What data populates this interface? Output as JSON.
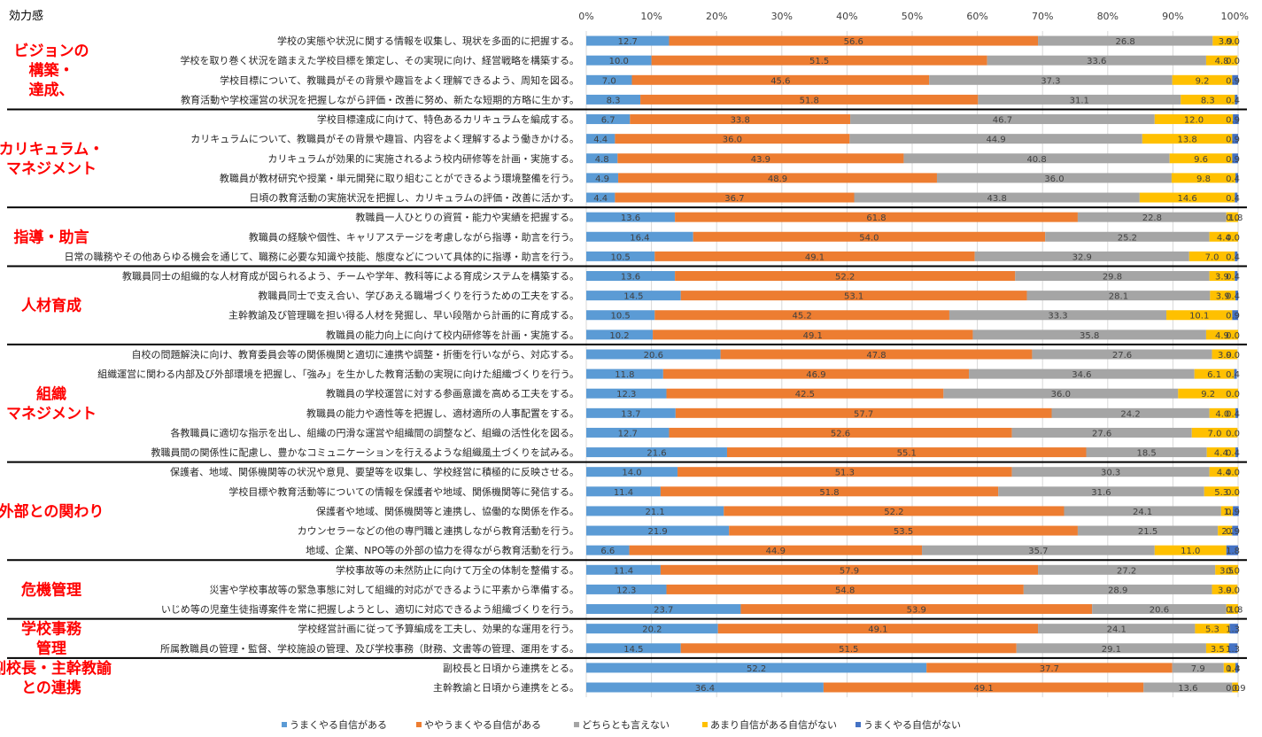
{
  "chart_data": {
    "type": "bar",
    "orientation": "horizontal",
    "stacked": "percent",
    "title": "効力感",
    "xlim": [
      0,
      100
    ],
    "x_ticks": [
      "0%",
      "10%",
      "20%",
      "30%",
      "40%",
      "50%",
      "60%",
      "70%",
      "80%",
      "90%",
      "100%"
    ],
    "legend_position": "bottom",
    "series": [
      {
        "name": "うまくやる自信がある",
        "color": "#5b9bd5"
      },
      {
        "name": "ややうまくやる自信がある",
        "color": "#ed7d31"
      },
      {
        "name": "どちらとも言えない",
        "color": "#a5a5a5"
      },
      {
        "name": "あまり自信がある自信がない",
        "color": "#ffc000"
      },
      {
        "name": "うまくやる自信がない",
        "color": "#4472c4"
      }
    ],
    "groups": [
      {
        "label": [
          "ビジョンの",
          "構築・",
          "達成、"
        ],
        "rows": [
          {
            "label": "学校の実態や状況に関する情報を収集し、現状を多面的に把握する。",
            "values": [
              12.7,
              56.6,
              26.8,
              3.9,
              0.0
            ]
          },
          {
            "label": "学校を取り巻く状況を踏まえた学校目標を策定し、その実現に向け、経営戦略を構築する。",
            "values": [
              10.0,
              51.5,
              33.6,
              4.8,
              0.0
            ]
          },
          {
            "label": "学校目標について、教職員がその背景や趣旨をよく理解できるよう、周知を図る。",
            "values": [
              7.0,
              45.6,
              37.3,
              9.2,
              0.9
            ]
          },
          {
            "label": "教育活動や学校運営の状況を把握しながら評価・改善に努め、新たな短期的方略に生かす。",
            "values": [
              8.3,
              51.8,
              31.1,
              8.3,
              0.4
            ]
          }
        ]
      },
      {
        "label": [
          "カリキュラム・",
          "マネジメント"
        ],
        "rows": [
          {
            "label": "学校目標達成に向けて、特色あるカリキュラムを編成する。",
            "values": [
              6.7,
              33.8,
              46.7,
              12.0,
              0.9
            ]
          },
          {
            "label": "カリキュラムについて、教職員がその背景や趣旨、内容をよく理解するよう働きかける。",
            "values": [
              4.4,
              36.0,
              44.9,
              13.8,
              0.9
            ]
          },
          {
            "label": "カリキュラムが効果的に実施されるよう校内研修等を計画・実施する。",
            "values": [
              4.8,
              43.9,
              40.8,
              9.6,
              0.9
            ]
          },
          {
            "label": "教職員が教材研究や授業・単元開発に取り組むことができるよう環境整備を行う。",
            "values": [
              4.9,
              48.9,
              36.0,
              9.8,
              0.4
            ]
          },
          {
            "label": "日頃の教育活動の実施状況を把握し、カリキュラムの評価・改善に活かす。",
            "values": [
              4.4,
              36.7,
              43.8,
              14.6,
              0.4
            ]
          }
        ]
      },
      {
        "label": [
          "指導・助言"
        ],
        "rows": [
          {
            "label": "教職員一人ひとりの資質・能力や実績を把握する。",
            "values": [
              13.6,
              61.8,
              22.8,
              1.8,
              0.0
            ]
          },
          {
            "label": "教職員の経験や個性、キャリアステージを考慮しながら指導・助言を行う。",
            "values": [
              16.4,
              54.0,
              25.2,
              4.4,
              0.0
            ]
          },
          {
            "label": "日常の職務やその他あらゆる機会を通じて、職務に必要な知識や技能、態度などについて具体的に指導・助言を行う。",
            "values": [
              10.5,
              49.1,
              32.9,
              7.0,
              0.4
            ]
          }
        ]
      },
      {
        "label": [
          "人材育成"
        ],
        "rows": [
          {
            "label": "教職員同士の組織的な人材育成が図られるよう、チームや学年、教科等による育成システムを構築する。",
            "values": [
              13.6,
              52.2,
              29.8,
              3.9,
              0.4
            ]
          },
          {
            "label": "教職員同士で支え合い、学びあえる職場づくりを行うための工夫をする。",
            "values": [
              14.5,
              53.1,
              28.1,
              3.9,
              0.4
            ]
          },
          {
            "label": "主幹教諭及び管理職を担い得る人材を発掘し、早い段階から計画的に育成する。",
            "values": [
              10.5,
              45.2,
              33.3,
              10.1,
              0.9
            ]
          },
          {
            "label": "教職員の能力向上に向けて校内研修等を計画・実施する。",
            "values": [
              10.2,
              49.1,
              35.8,
              4.9,
              0.0
            ]
          }
        ]
      },
      {
        "label": [
          "組織",
          "マネジメント"
        ],
        "rows": [
          {
            "label": "自校の問題解決に向け、教育委員会等の関係機関と適切に連携や調整・折衝を行いながら、対応する。",
            "values": [
              20.6,
              47.8,
              27.6,
              3.9,
              0.0
            ]
          },
          {
            "label": "組織運営に関わる内部及び外部環境を把握し、「強み」を生かした教育活動の実現に向けた組織づくりを行う。",
            "values": [
              11.8,
              46.9,
              34.6,
              6.1,
              0.4
            ]
          },
          {
            "label": "教職員の学校運営に対する参画意識を高める工夫をする。",
            "values": [
              12.3,
              42.5,
              36.0,
              9.2,
              0.0
            ]
          },
          {
            "label": "教職員の能力や適性等を把握し、適材適所の人事配置をする。",
            "values": [
              13.7,
              57.7,
              24.2,
              4.0,
              0.4
            ]
          },
          {
            "label": "各教職員に適切な指示を出し、組織の円滑な運営や組織間の調整など、組織の活性化を図る。",
            "values": [
              12.7,
              52.6,
              27.6,
              7.0,
              0.0
            ]
          },
          {
            "label": "教職員間の関係性に配慮し、豊かなコミュニケーションを行えるような組織風土づくりを試みる。",
            "values": [
              21.6,
              55.1,
              18.5,
              4.4,
              0.4
            ]
          }
        ]
      },
      {
        "label": [
          "外部との関わり"
        ],
        "rows": [
          {
            "label": "保護者、地域、関係機関等の状況や意見、要望等を収集し、学校経営に積極的に反映させる。",
            "values": [
              14.0,
              51.3,
              30.3,
              4.4,
              0.0
            ]
          },
          {
            "label": "学校目標や教育活動等についての情報を保護者や地域、関係機関等に発信する。",
            "values": [
              11.4,
              51.8,
              31.6,
              5.3,
              0.0
            ]
          },
          {
            "label": "保護者や地域、関係機関等と連携し、協働的な関係を作る。",
            "values": [
              21.1,
              52.2,
              24.1,
              1.8,
              0.9
            ]
          },
          {
            "label": "カウンセラーなどの他の専門職と連携しながら教育活動を行う。",
            "values": [
              21.9,
              53.5,
              21.5,
              2.2,
              0.9
            ]
          },
          {
            "label": "地域、企業、NPO等の外部の協力を得ながら教育活動を行う。",
            "values": [
              6.6,
              44.9,
              35.7,
              11.0,
              1.8
            ]
          }
        ]
      },
      {
        "label": [
          "危機管理"
        ],
        "rows": [
          {
            "label": "学校事故等の未然防止に向けて万全の体制を整備する。",
            "values": [
              11.4,
              57.9,
              27.2,
              3.5,
              0.0
            ]
          },
          {
            "label": "災害や学校事故等の緊急事態に対して組織的対応ができるように平素から準備する。",
            "values": [
              12.3,
              54.8,
              28.9,
              3.9,
              0.0
            ]
          },
          {
            "label": "いじめ等の児童生徒指導案件を常に把握しようとし、適切に対応できるよう組織づくりを行う。",
            "values": [
              23.7,
              53.9,
              20.6,
              1.8,
              0.0
            ]
          }
        ]
      },
      {
        "label": [
          "学校事務",
          "管理"
        ],
        "rows": [
          {
            "label": "学校経営計画に従って予算編成を工夫し、効果的な運用を行う。",
            "values": [
              20.2,
              49.1,
              24.1,
              5.3,
              1.3
            ]
          },
          {
            "label": "所属教職員の管理・監督、学校施設の管理、及び学校事務（財務、文書等の管理、運用をする。",
            "values": [
              14.5,
              51.5,
              29.1,
              3.5,
              1.3
            ]
          }
        ]
      },
      {
        "label": [
          "副校長・主幹教諭",
          "との連携"
        ],
        "rows": [
          {
            "label": "副校長と日頃から連携をとる。",
            "values": [
              52.2,
              37.7,
              7.9,
              1.8,
              0.4
            ]
          },
          {
            "label": "主幹教諭と日頃から連携をとる。",
            "values": [
              36.4,
              49.1,
              13.6,
              0.9,
              0.0
            ]
          }
        ]
      }
    ]
  }
}
